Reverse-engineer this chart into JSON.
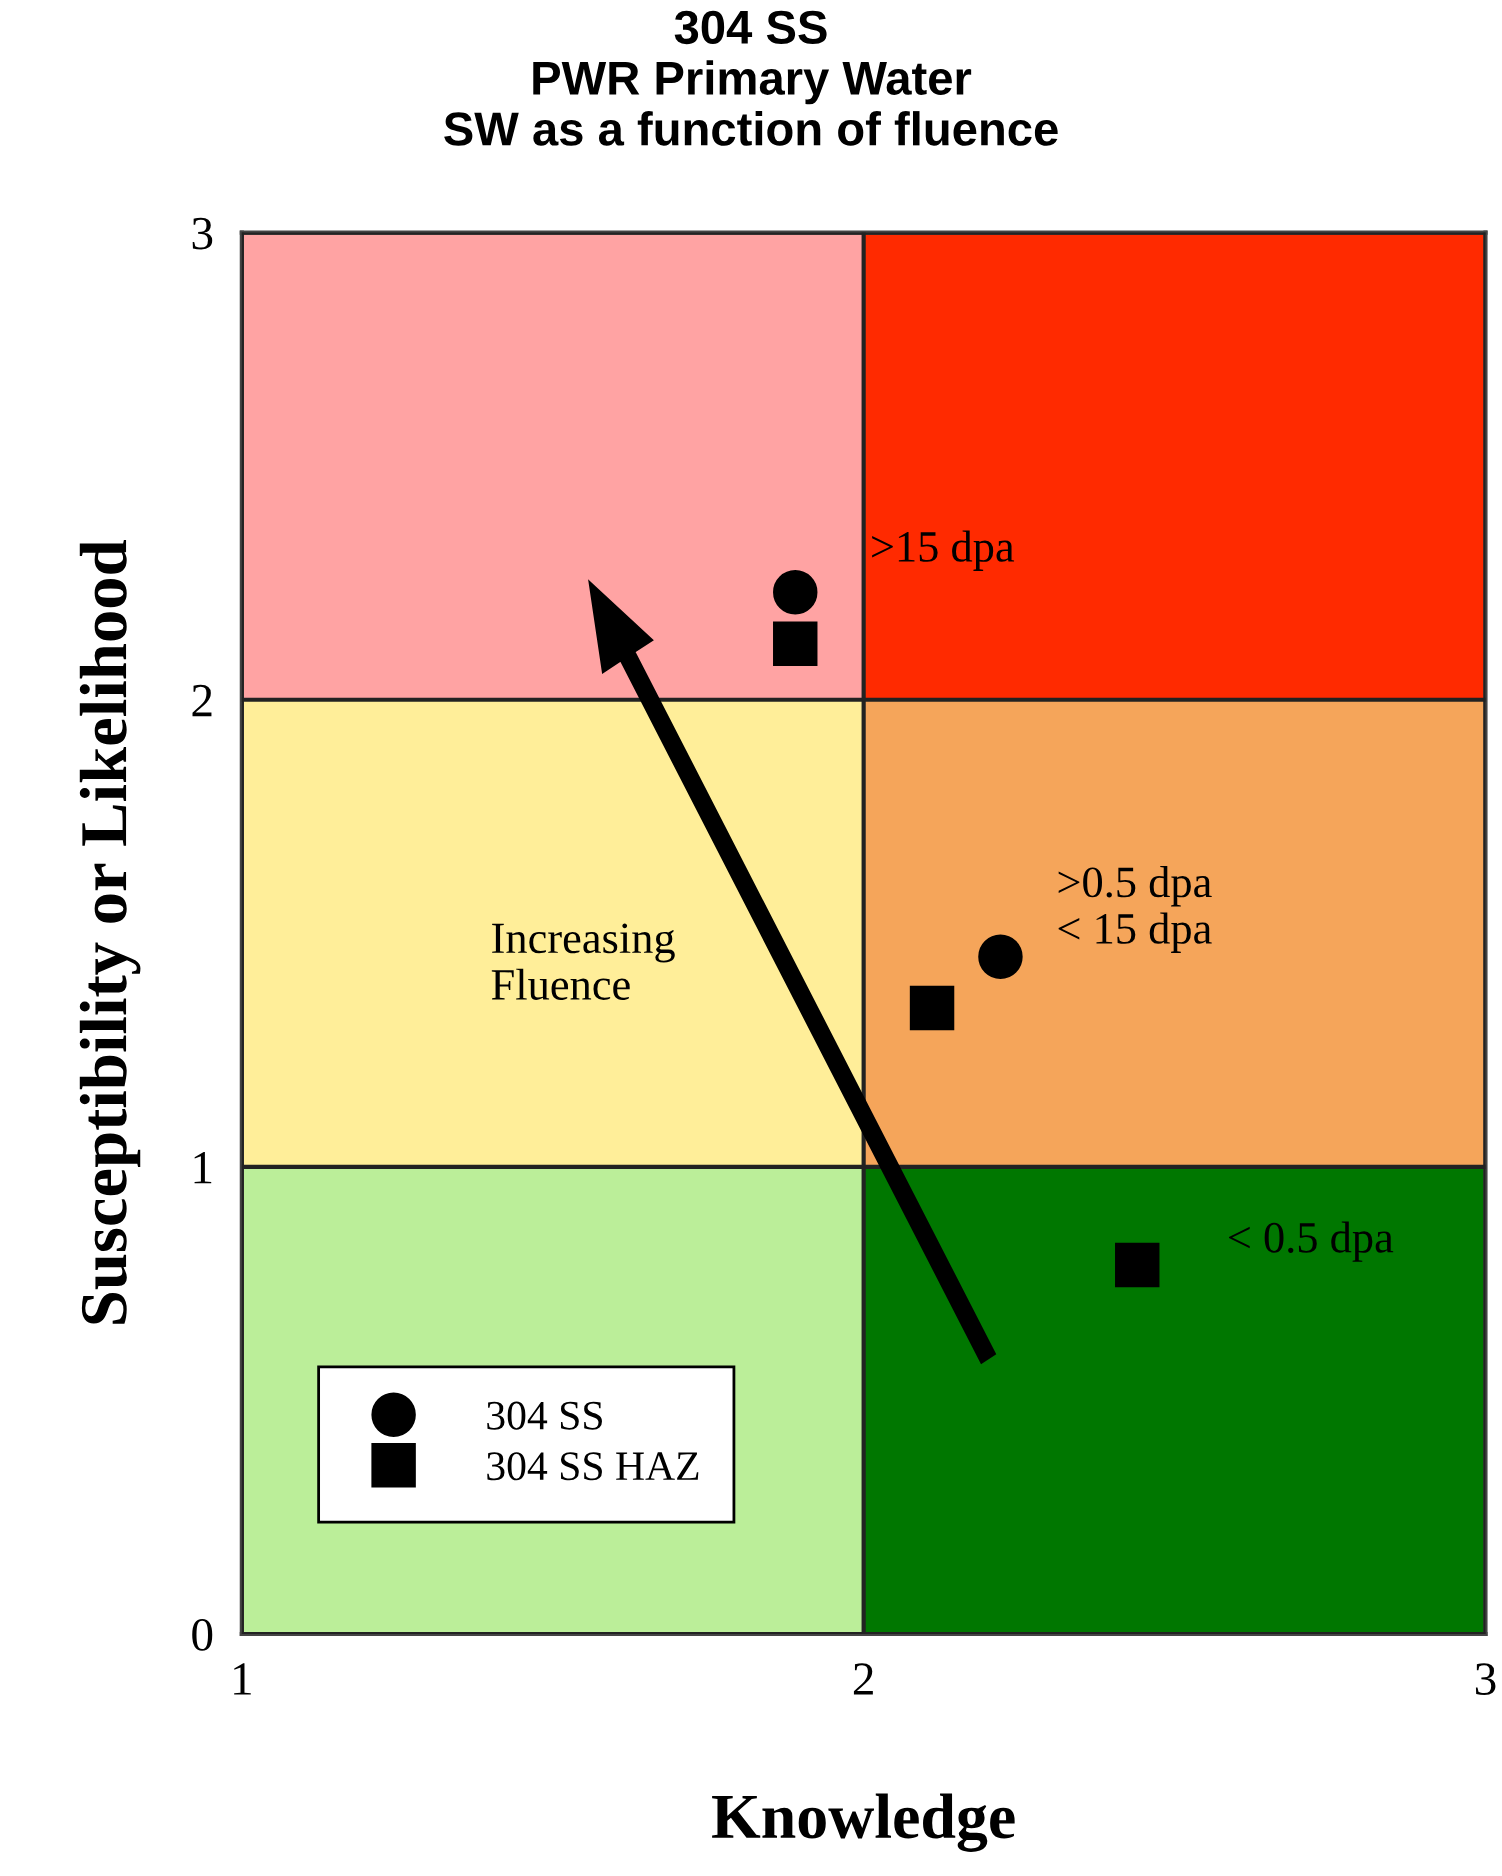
{
  "chart_data": {
    "type": "scatter",
    "title": "304 SS\nPWR Primary Water\nSW as a function of fluence",
    "xlabel": "Knowledge",
    "ylabel": "Susceptibility or Likelihood",
    "xlim": [
      1,
      3
    ],
    "ylim": [
      0,
      3
    ],
    "xticks": [
      1,
      2,
      3
    ],
    "yticks": [
      0,
      1,
      2,
      3
    ],
    "grid": true,
    "legend": "bottom left",
    "series": [
      {
        "name": "304 SS",
        "color": "#000000",
        "marker": "circle",
        "x": [
          1.89,
          2.22
        ],
        "values": [
          2.23,
          1.45
        ]
      },
      {
        "name": "304 SS HAZ",
        "color": "#000000",
        "marker": "square",
        "x": [
          1.89,
          2.11,
          2.44
        ],
        "values": [
          2.12,
          1.34,
          0.79
        ]
      }
    ],
    "annotations": [
      ">15 dpa",
      ">0.5 dpa\n< 15 dpa",
      "< 0.5 dpa",
      "Increasing\nFluence"
    ]
  }
}
